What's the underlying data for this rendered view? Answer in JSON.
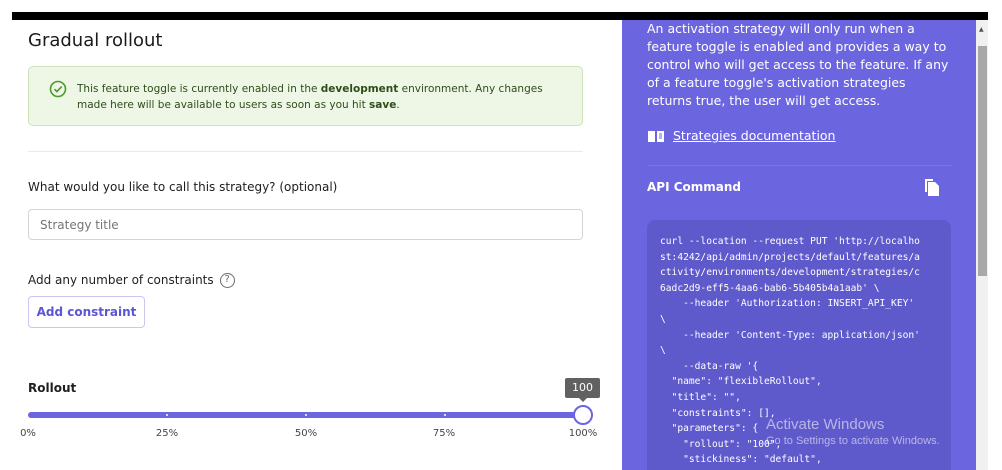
{
  "title": "Gradual rollout",
  "alert": {
    "pre": "This feature toggle is currently enabled in the ",
    "env": "development",
    "mid": " environment. Any changes made here will be available to users as soon as you hit ",
    "save": "save",
    "post": "."
  },
  "strategy_title": {
    "label": "What would you like to call this strategy? (optional)",
    "placeholder": "Strategy title",
    "value": ""
  },
  "constraints": {
    "label": "Add any number of constraints",
    "help": "?",
    "button": "Add constraint"
  },
  "rollout": {
    "label": "Rollout",
    "value": 100,
    "tooltip": "100",
    "ticks": [
      "0%",
      "25%",
      "50%",
      "75%",
      "100%"
    ]
  },
  "panel": {
    "description": "An activation strategy will only run when a feature toggle is enabled and provides a way to control who will get access to the feature. If any of a feature toggle's activation strategies returns true, the user will get access.",
    "doc_link": "Strategies documentation",
    "api_title": "API Command",
    "code": "curl --location --request PUT 'http://localho\nst:4242/api/admin/projects/default/features/a\nctivity/environments/development/strategies/c\n6adc2d9-eff5-4aa6-bab6-5b405b4a1aab' \\\n    --header 'Authorization: INSERT_API_KEY'\n\\\n    --header 'Content-Type: application/json'\n\\\n    --data-raw '{\n  \"name\": \"flexibleRollout\",\n  \"title\": \"\",\n  \"constraints\": [],\n  \"parameters\": {\n    \"rollout\": \"100\",\n    \"stickiness\": \"default\","
  },
  "watermark": {
    "line1": "Activate Windows",
    "line2": "Go to Settings to activate Windows."
  },
  "colors": {
    "accent": "#6c65e0",
    "code_bg": "#5f5acb",
    "alert_bg": "#eef6e6"
  }
}
